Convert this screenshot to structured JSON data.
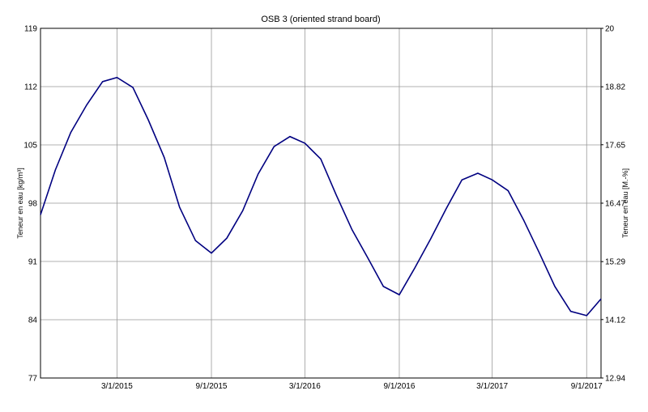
{
  "chart_data": {
    "type": "line",
    "title": "OSB 3 (oriented strand board)",
    "ylabel": "Teneur en eau [kg/m³]",
    "y2label": "Teneur en eau [M.-%]",
    "x": [
      "10/3/2014",
      "11/1/2014",
      "12/1/2014",
      "1/1/2015",
      "2/1/2015",
      "3/1/2015",
      "4/1/2015",
      "5/1/2015",
      "6/1/2015",
      "7/1/2015",
      "8/1/2015",
      "9/1/2015",
      "10/1/2015",
      "11/1/2015",
      "12/1/2015",
      "1/1/2016",
      "2/1/2016",
      "3/1/2016",
      "4/1/2016",
      "5/1/2016",
      "6/1/2016",
      "7/1/2016",
      "8/1/2016",
      "9/1/2016",
      "10/1/2016",
      "11/1/2016",
      "12/1/2016",
      "1/1/2017",
      "2/1/2017",
      "3/1/2017",
      "4/1/2017",
      "5/1/2017",
      "6/1/2017",
      "7/1/2017",
      "8/1/2017",
      "9/1/2017",
      "9/29/2017"
    ],
    "series": [
      {
        "color": "#000080",
        "values": [
          96.6,
          102.0,
          106.5,
          109.8,
          112.6,
          113.1,
          111.9,
          108.0,
          103.5,
          97.5,
          93.5,
          92.0,
          93.8,
          97.1,
          101.5,
          104.8,
          106.0,
          105.2,
          103.3,
          99.0,
          94.8,
          91.5,
          88.0,
          87.0,
          90.2,
          93.7,
          97.3,
          100.8,
          101.6,
          100.8,
          99.5,
          96.0,
          92.0,
          88.0,
          85.0,
          84.5,
          86.5
        ]
      }
    ],
    "xlim": [
      "10/3/2014",
      "9/29/2017"
    ],
    "xticks": [
      "3/1/2015",
      "9/1/2015",
      "3/1/2016",
      "9/1/2016",
      "3/1/2017",
      "9/1/2017"
    ],
    "ylim": [
      77,
      119
    ],
    "yticks": [
      77,
      84,
      91,
      98,
      105,
      112,
      119
    ],
    "y2lim": [
      12.94,
      20
    ],
    "y2ticks": [
      12.94,
      14.12,
      15.29,
      16.47,
      17.65,
      18.82,
      20
    ],
    "grid": true
  }
}
